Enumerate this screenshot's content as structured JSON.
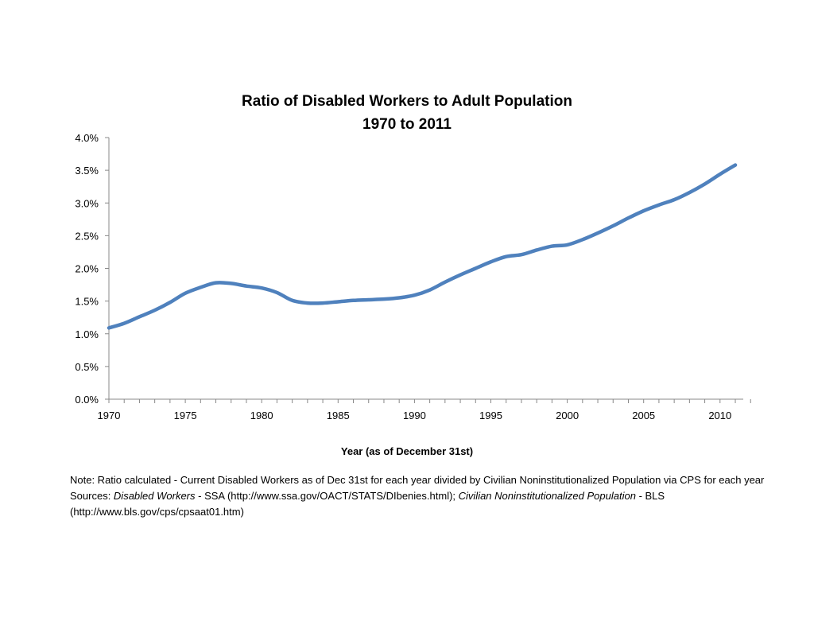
{
  "chart_data": {
    "type": "line",
    "title": "Ratio of Disabled Workers to Adult Population",
    "subtitle": "1970 to 2011",
    "xlabel": "Year (as of December 31st)",
    "ylabel": "",
    "xlim": [
      1970,
      2011
    ],
    "ylim": [
      0,
      4.0
    ],
    "y_unit": "%",
    "y_ticks": [
      "0.0%",
      "0.5%",
      "1.0%",
      "1.5%",
      "2.0%",
      "2.5%",
      "3.0%",
      "3.5%",
      "4.0%"
    ],
    "x_ticks": [
      "1970",
      "1975",
      "1980",
      "1985",
      "1990",
      "1995",
      "2000",
      "2005",
      "2010"
    ],
    "grid": false,
    "legend": "none",
    "color": "#4F81BD",
    "series": [
      {
        "x": [
          1970,
          1971,
          1972,
          1973,
          1974,
          1975,
          1976,
          1977,
          1978,
          1979,
          1980,
          1981,
          1982,
          1983,
          1984,
          1985,
          1986,
          1987,
          1988,
          1989,
          1990,
          1991,
          1992,
          1993,
          1994,
          1995,
          1996,
          1997,
          1998,
          1999,
          2000,
          2001,
          2002,
          2003,
          2004,
          2005,
          2006,
          2007,
          2008,
          2009,
          2010,
          2011
        ],
        "values": [
          1.09,
          1.16,
          1.26,
          1.36,
          1.48,
          1.62,
          1.71,
          1.78,
          1.77,
          1.73,
          1.7,
          1.63,
          1.51,
          1.47,
          1.47,
          1.49,
          1.51,
          1.52,
          1.53,
          1.55,
          1.59,
          1.67,
          1.79,
          1.9,
          2.0,
          2.1,
          2.18,
          2.21,
          2.28,
          2.34,
          2.36,
          2.44,
          2.54,
          2.65,
          2.77,
          2.88,
          2.97,
          3.05,
          3.16,
          3.29,
          3.44,
          3.58
        ]
      }
    ]
  },
  "notes": {
    "note": "Note: Ratio calculated - Current Disabled Workers  as of Dec 31st for each year divided by Civilian Noninstitutionalized Population via CPS for each year",
    "sources_prefix": "Sources: ",
    "source1_name": "Disabled Workers",
    "source1_text": " - SSA (http://www.ssa.gov/OACT/STATS/DIbenies.html); ",
    "source2_name": "Civilian Noninstitutionalized Population",
    "source2_text": " - BLS (http://www.bls.gov/cps/cpsaat01.htm)"
  }
}
